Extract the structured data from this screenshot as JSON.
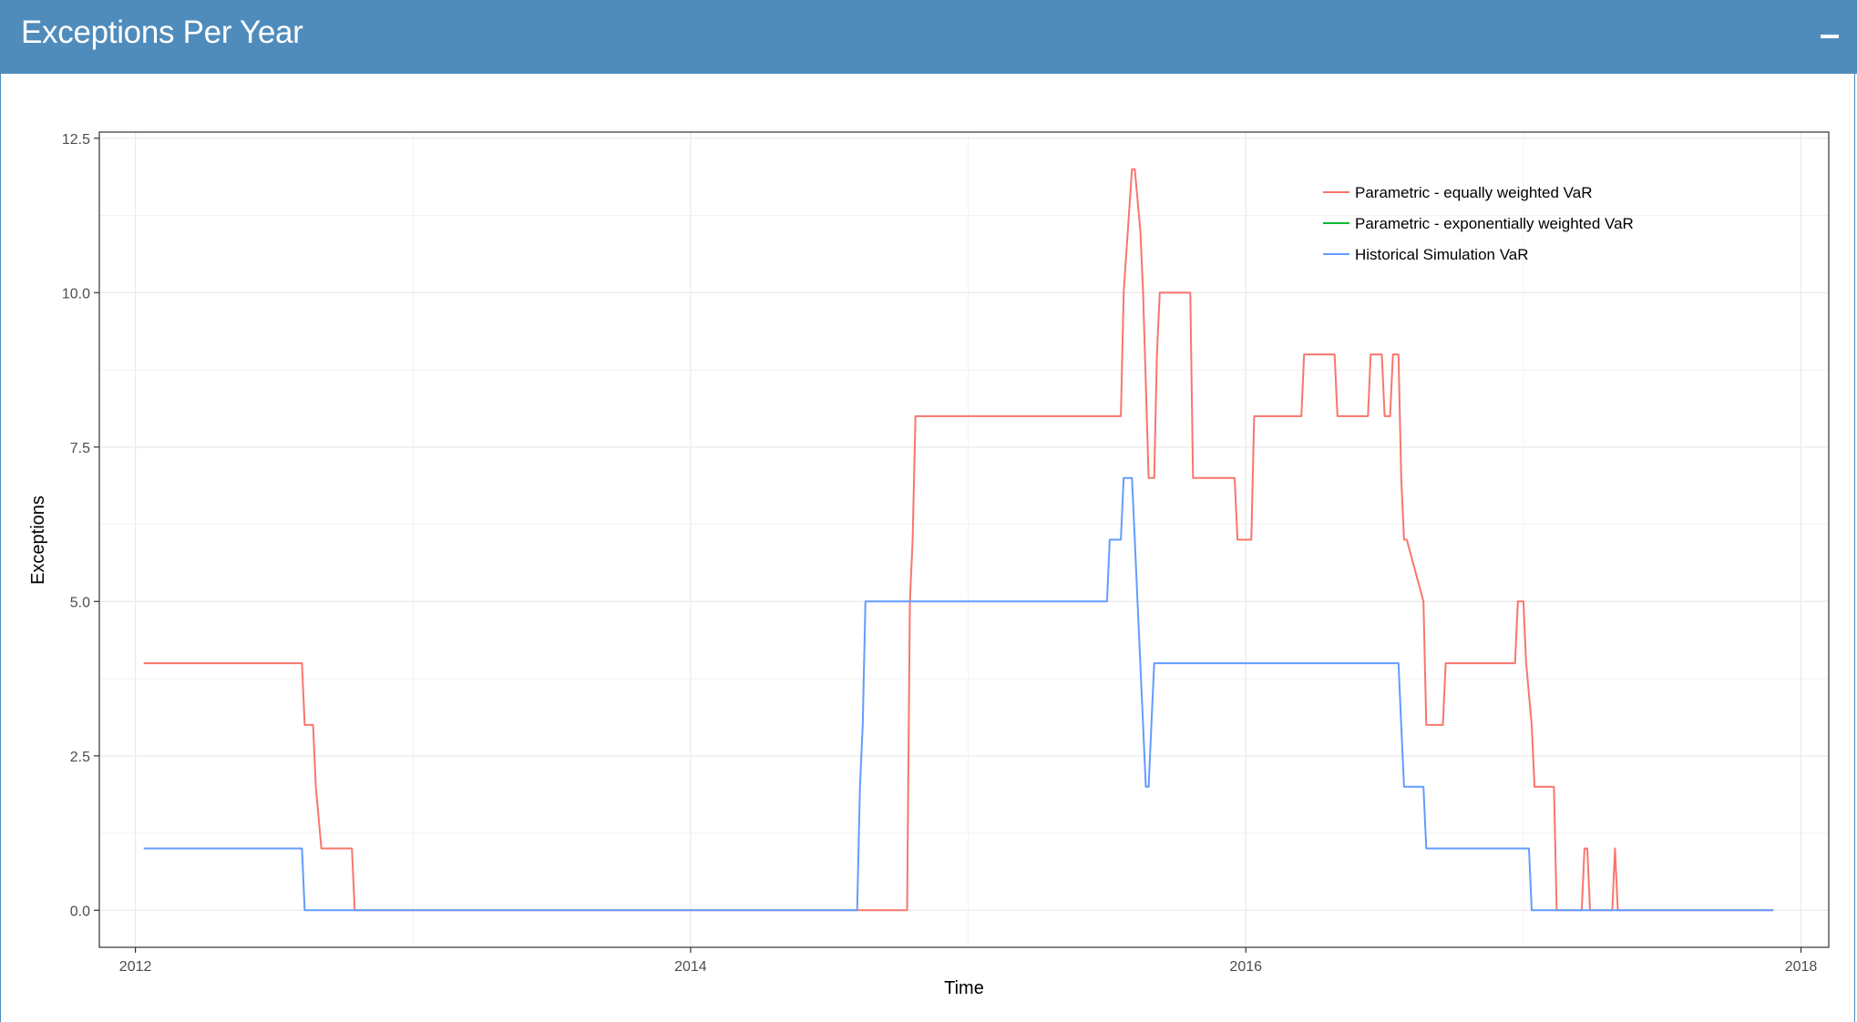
{
  "header": {
    "title": "Exceptions Per Year",
    "collapse_icon": "minus-icon"
  },
  "colors": {
    "header_bg": "#4f8cbc",
    "series_red": "#f8766d",
    "series_green": "#00ba38",
    "series_blue": "#619cff"
  },
  "chart_data": {
    "type": "line",
    "title": "",
    "xlabel": "Time",
    "ylabel": "Exceptions",
    "xlim": [
      2011.87,
      2018.1
    ],
    "ylim": [
      -0.6,
      12.6
    ],
    "x_ticks": [
      2012,
      2014,
      2016,
      2018
    ],
    "x_tick_labels": [
      "2012",
      "2014",
      "2016",
      "2018"
    ],
    "y_ticks": [
      0,
      2.5,
      5,
      7.5,
      10,
      12.5
    ],
    "y_tick_labels": [
      "0.0",
      "2.5",
      "5.0",
      "7.5",
      "10.0",
      "12.5"
    ],
    "grid": true,
    "legend_position": "top-right",
    "series": [
      {
        "name": "Parametric - equally weighted VaR",
        "color": "#f8766d",
        "x": [
          2012.03,
          2012.6,
          2012.61,
          2012.64,
          2012.65,
          2012.67,
          2012.78,
          2012.79,
          2014.78,
          2014.79,
          2014.8,
          2014.81,
          2015.55,
          2015.56,
          2015.59,
          2015.6,
          2015.62,
          2015.63,
          2015.65,
          2015.67,
          2015.68,
          2015.69,
          2015.8,
          2015.81,
          2015.96,
          2015.97,
          2016.02,
          2016.03,
          2016.2,
          2016.21,
          2016.32,
          2016.33,
          2016.44,
          2016.45,
          2016.49,
          2016.5,
          2016.52,
          2016.53,
          2016.55,
          2016.56,
          2016.57,
          2016.58,
          2016.64,
          2016.65,
          2016.71,
          2016.72,
          2016.82,
          2016.83,
          2016.97,
          2016.98,
          2017.0,
          2017.01,
          2017.03,
          2017.04,
          2017.11,
          2017.12,
          2017.21,
          2017.22,
          2017.23,
          2017.24,
          2017.32,
          2017.33,
          2017.34,
          2017.9
        ],
        "y": [
          4,
          4,
          3,
          3,
          2,
          1,
          1,
          0,
          0,
          5,
          6,
          8,
          8,
          10,
          12,
          12,
          11,
          10,
          7,
          7,
          9,
          10,
          10,
          7,
          7,
          6,
          6,
          8,
          8,
          9,
          9,
          8,
          8,
          9,
          9,
          8,
          8,
          9,
          9,
          7,
          6,
          6,
          5,
          3,
          3,
          4,
          4,
          4,
          4,
          5,
          5,
          4,
          3,
          2,
          2,
          0,
          0,
          1,
          1,
          0,
          0,
          1,
          0,
          0
        ]
      },
      {
        "name": "Parametric - exponentially weighted VaR",
        "color": "#00ba38",
        "x": [],
        "y": []
      },
      {
        "name": "Historical Simulation VaR",
        "color": "#619cff",
        "x": [
          2012.03,
          2012.6,
          2012.61,
          2014.6,
          2014.61,
          2014.62,
          2014.63,
          2015.5,
          2015.51,
          2015.55,
          2015.56,
          2015.59,
          2015.6,
          2015.61,
          2015.63,
          2015.64,
          2015.65,
          2015.66,
          2015.67,
          2016.55,
          2016.56,
          2016.57,
          2016.64,
          2016.65,
          2017.02,
          2017.03,
          2017.9
        ],
        "y": [
          1,
          1,
          0,
          0,
          2,
          3,
          5,
          5,
          6,
          6,
          7,
          7,
          6,
          5,
          3,
          2,
          2,
          3,
          4,
          4,
          3,
          2,
          2,
          1,
          1,
          0,
          0
        ]
      }
    ]
  }
}
